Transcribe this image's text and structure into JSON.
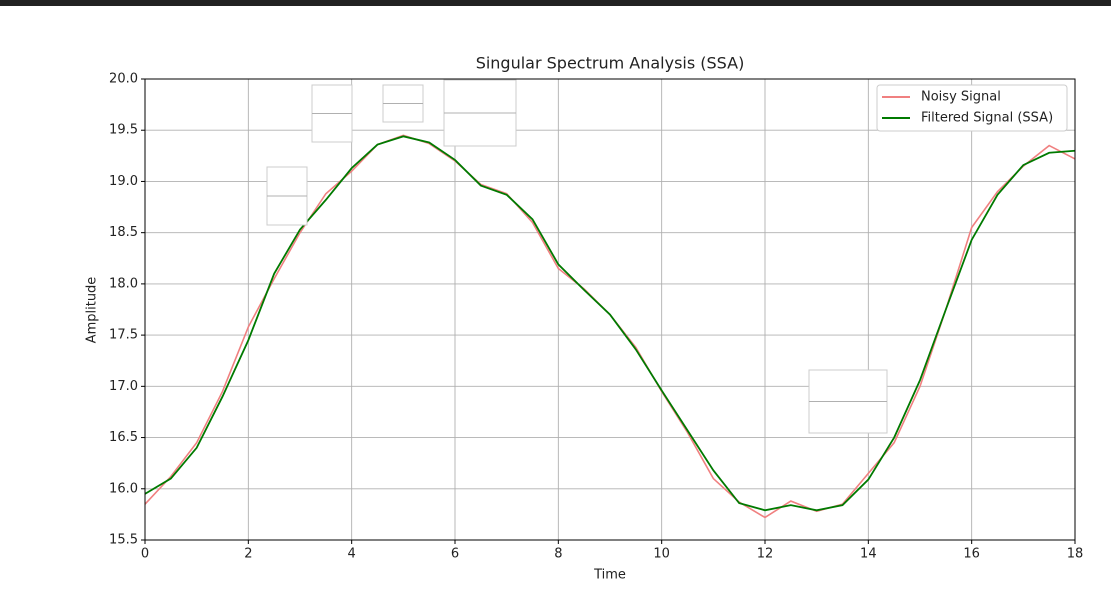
{
  "chart_data": {
    "type": "line",
    "title": "Singular Spectrum Analysis (SSA)",
    "x_label": "Time",
    "y_label": "Amplitude",
    "x": [
      0,
      0.5,
      1,
      1.5,
      2,
      2.5,
      3,
      3.5,
      4,
      4.5,
      5,
      5.5,
      6,
      6.5,
      7,
      7.5,
      8,
      8.5,
      9,
      9.5,
      10,
      10.5,
      11,
      11.5,
      12,
      12.5,
      13,
      13.5,
      14,
      14.5,
      15,
      15.5,
      16,
      16.5,
      17,
      17.5,
      18
    ],
    "series": [
      {
        "name": "Noisy Signal",
        "color": "#f08080",
        "values": [
          15.85,
          16.12,
          16.45,
          16.95,
          17.58,
          18.05,
          18.5,
          18.88,
          19.1,
          19.36,
          19.45,
          19.37,
          19.2,
          18.97,
          18.88,
          18.6,
          18.15,
          17.95,
          17.7,
          17.38,
          16.95,
          16.55,
          16.1,
          15.87,
          15.72,
          15.88,
          15.78,
          15.85,
          16.15,
          16.45,
          17.0,
          17.75,
          18.55,
          18.9,
          19.15,
          19.35,
          19.22
        ]
      },
      {
        "name": "Filtered Signal (SSA)",
        "color": "#007a00",
        "values": [
          15.95,
          16.1,
          16.4,
          16.9,
          17.45,
          18.1,
          18.53,
          18.82,
          19.13,
          19.36,
          19.44,
          19.38,
          19.21,
          18.96,
          18.87,
          18.63,
          18.19,
          17.94,
          17.7,
          17.36,
          16.96,
          16.57,
          16.18,
          15.86,
          15.79,
          15.84,
          15.79,
          15.84,
          16.09,
          16.5,
          17.06,
          17.75,
          18.43,
          18.87,
          19.16,
          19.28,
          19.3
        ]
      }
    ],
    "xlim": [
      0,
      18
    ],
    "xticks": [
      0,
      2,
      4,
      6,
      8,
      10,
      12,
      14,
      16,
      18
    ],
    "ylim": [
      15.5,
      20
    ],
    "yticks": [
      15.5,
      {
        "value": 16,
        "label": "16.0"
      },
      16.5,
      {
        "value": 17,
        "label": "17.0"
      },
      17.5,
      {
        "value": 18,
        "label": "18.0"
      },
      18.5,
      {
        "value": 19,
        "label": "19.0"
      },
      19.5,
      {
        "value": 20,
        "label": "20.0"
      }
    ],
    "grid": true,
    "legend": "upper right"
  }
}
